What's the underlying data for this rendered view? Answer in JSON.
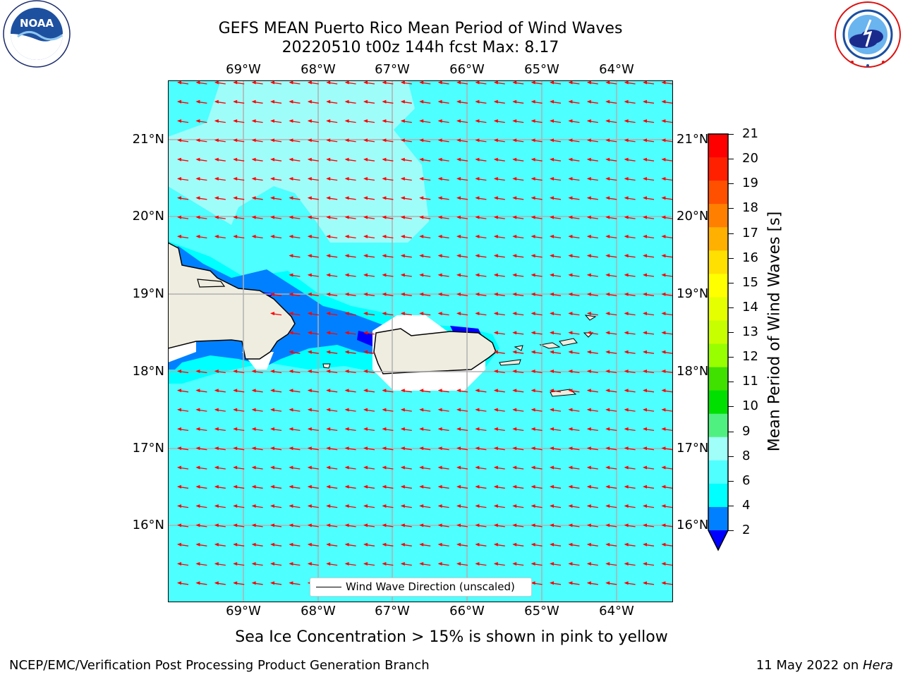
{
  "title": {
    "line1": "GEFS MEAN Puerto Rico Mean Period of Wind Waves",
    "line2": "20220510 t00z 144h fcst   Max: 8.17"
  },
  "logos": {
    "left": {
      "text": "NOAA",
      "ring_text": "NATIONAL OCEANIC AND ATMOSPHERIC ADMINISTRATION · U.S. DEPARTMENT OF COMMERCE"
    },
    "right": {
      "ring_text": "NATIONAL WEATHER SERVICE"
    }
  },
  "map": {
    "lon_ticks": [
      "69°W",
      "68°W",
      "67°W",
      "66°W",
      "65°W",
      "64°W"
    ],
    "lat_ticks": [
      "21°N",
      "20°N",
      "19°N",
      "18°N",
      "17°N",
      "16°N"
    ],
    "colors": {
      "ocean_main": "#4dffff",
      "ocean_light": "#9ffdf9",
      "shallow": "#00ffff",
      "mid": "#0080ff",
      "deep": "#0000ff",
      "land": "#efede0",
      "grid": "#b0b0b0",
      "arrow": "#ff0000"
    },
    "wind_direction": "toward west (slightly west-southwest)"
  },
  "legend": {
    "label": "Wind Wave Direction (unscaled)"
  },
  "colorbar": {
    "label": "Mean Period of Wind Waves [s]",
    "ticks": [
      "21",
      "20",
      "19",
      "18",
      "17",
      "16",
      "15",
      "14",
      "13",
      "12",
      "11",
      "10",
      "9",
      "8",
      "6",
      "4",
      "2"
    ],
    "colors": [
      "#ff0000",
      "#ff2000",
      "#ff5000",
      "#ff8000",
      "#ffb000",
      "#ffe000",
      "#ffff00",
      "#e6ff00",
      "#c8ff00",
      "#98ff00",
      "#40e000",
      "#00e000",
      "#50f080",
      "#a0fff8",
      "#50ffff",
      "#00ffff",
      "#0080ff"
    ],
    "extend_color": "#0000ff"
  },
  "note": "Sea Ice Concentration > 15% is shown in pink to yellow",
  "footer": {
    "left": "NCEP/EMC/Verification Post Processing Product Generation Branch",
    "right_prefix": "11 May 2022 on ",
    "right_machine": "Hera"
  }
}
